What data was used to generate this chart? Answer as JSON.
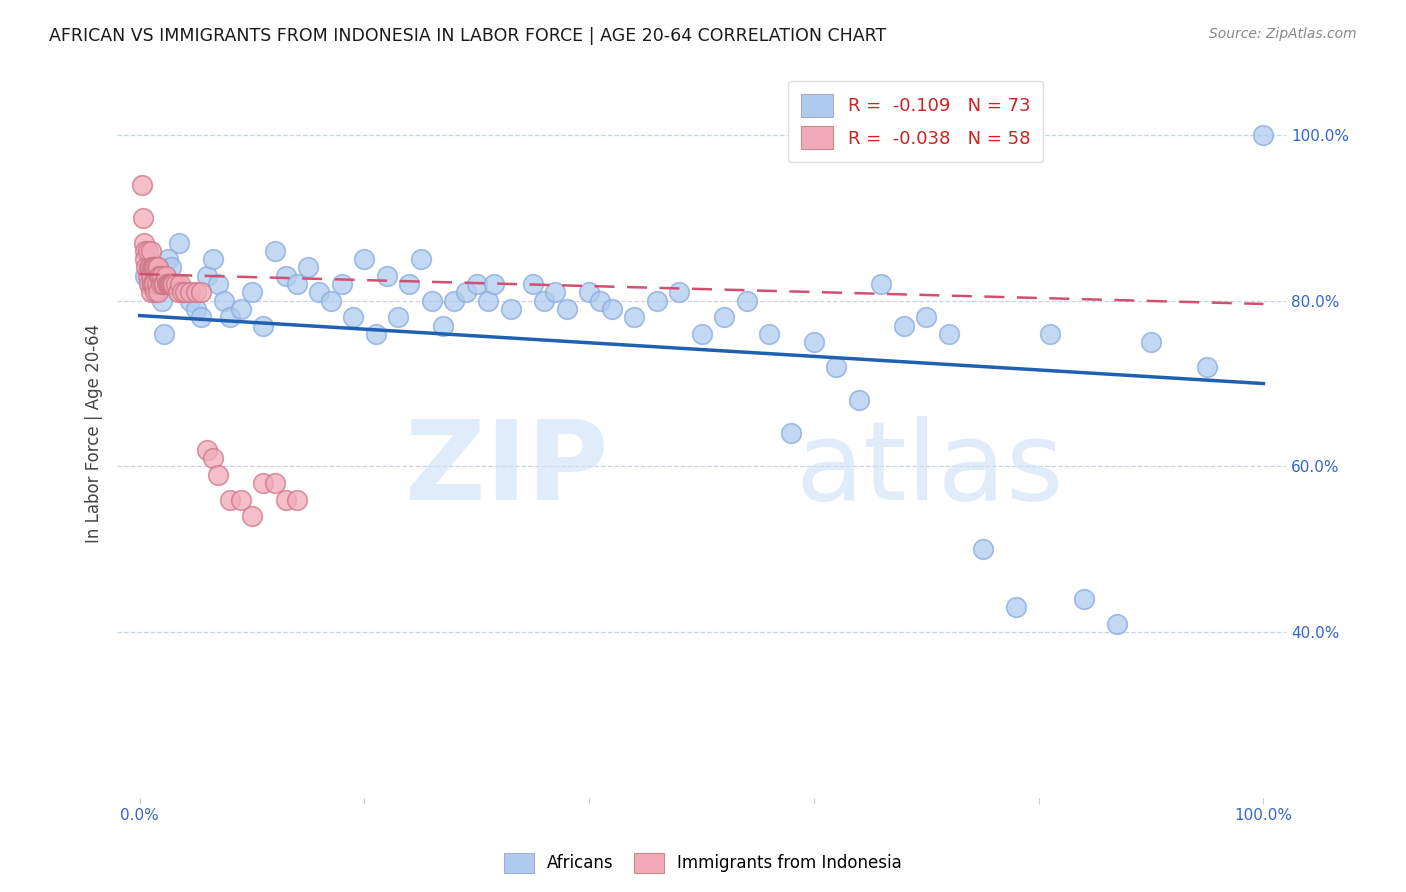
{
  "title": "AFRICAN VS IMMIGRANTS FROM INDONESIA IN LABOR FORCE | AGE 20-64 CORRELATION CHART",
  "source": "Source: ZipAtlas.com",
  "ylabel": "In Labor Force | Age 20-64",
  "xlim": [
    -0.02,
    1.02
  ],
  "ylim": [
    0.2,
    1.08
  ],
  "x_ticks": [
    0.0,
    0.2,
    0.4,
    0.6,
    0.8,
    1.0
  ],
  "x_tick_labels": [
    "0.0%",
    "",
    "",
    "",
    "",
    "100.0%"
  ],
  "y_ticks_right": [
    0.4,
    0.6,
    0.8,
    1.0
  ],
  "y_tick_labels_right": [
    "40.0%",
    "60.0%",
    "80.0%",
    "100.0%"
  ],
  "legend_blue_r": "-0.109",
  "legend_blue_n": "73",
  "legend_pink_r": "-0.038",
  "legend_pink_n": "58",
  "blue_color": "#aecbef",
  "pink_color": "#f2aab8",
  "blue_line_color": "#2060b0",
  "pink_line_color": "#d05070",
  "background_color": "#ffffff",
  "grid_color": "#c8d4e8",
  "blue_trend_x": [
    0.0,
    1.0
  ],
  "blue_trend_y": [
    0.782,
    0.7
  ],
  "pink_trend_x": [
    0.0,
    1.0
  ],
  "pink_trend_y": [
    0.832,
    0.796
  ],
  "blue_scatter_x": [
    0.005,
    0.01,
    0.015,
    0.02,
    0.022,
    0.025,
    0.028,
    0.03,
    0.035,
    0.04,
    0.045,
    0.05,
    0.055,
    0.06,
    0.065,
    0.07,
    0.075,
    0.08,
    0.09,
    0.1,
    0.11,
    0.12,
    0.13,
    0.14,
    0.15,
    0.16,
    0.17,
    0.18,
    0.19,
    0.2,
    0.21,
    0.22,
    0.23,
    0.24,
    0.25,
    0.26,
    0.27,
    0.28,
    0.29,
    0.3,
    0.31,
    0.315,
    0.33,
    0.35,
    0.36,
    0.37,
    0.38,
    0.4,
    0.41,
    0.42,
    0.44,
    0.46,
    0.48,
    0.5,
    0.52,
    0.54,
    0.56,
    0.58,
    0.6,
    0.62,
    0.64,
    0.66,
    0.68,
    0.7,
    0.72,
    0.75,
    0.78,
    0.81,
    0.84,
    0.87,
    0.9,
    0.95,
    1.0
  ],
  "blue_scatter_y": [
    0.83,
    0.82,
    0.81,
    0.8,
    0.76,
    0.85,
    0.84,
    0.82,
    0.87,
    0.81,
    0.8,
    0.79,
    0.78,
    0.83,
    0.85,
    0.82,
    0.8,
    0.78,
    0.79,
    0.81,
    0.77,
    0.86,
    0.83,
    0.82,
    0.84,
    0.81,
    0.8,
    0.82,
    0.78,
    0.85,
    0.76,
    0.83,
    0.78,
    0.82,
    0.85,
    0.8,
    0.77,
    0.8,
    0.81,
    0.82,
    0.8,
    0.82,
    0.79,
    0.82,
    0.8,
    0.81,
    0.79,
    0.81,
    0.8,
    0.79,
    0.78,
    0.8,
    0.81,
    0.76,
    0.78,
    0.8,
    0.76,
    0.64,
    0.75,
    0.72,
    0.68,
    0.82,
    0.77,
    0.78,
    0.76,
    0.5,
    0.43,
    0.76,
    0.44,
    0.41,
    0.75,
    0.72,
    1.0
  ],
  "pink_scatter_x": [
    0.002,
    0.003,
    0.004,
    0.005,
    0.005,
    0.006,
    0.007,
    0.007,
    0.008,
    0.008,
    0.009,
    0.01,
    0.01,
    0.01,
    0.011,
    0.011,
    0.012,
    0.012,
    0.013,
    0.013,
    0.014,
    0.014,
    0.015,
    0.015,
    0.016,
    0.016,
    0.017,
    0.018,
    0.019,
    0.02,
    0.021,
    0.022,
    0.023,
    0.024,
    0.025,
    0.026,
    0.027,
    0.028,
    0.029,
    0.03,
    0.032,
    0.034,
    0.036,
    0.038,
    0.04,
    0.045,
    0.05,
    0.055,
    0.06,
    0.065,
    0.07,
    0.08,
    0.09,
    0.1,
    0.11,
    0.12,
    0.13,
    0.14
  ],
  "pink_scatter_y": [
    0.94,
    0.9,
    0.87,
    0.86,
    0.85,
    0.84,
    0.86,
    0.83,
    0.84,
    0.82,
    0.84,
    0.86,
    0.83,
    0.81,
    0.84,
    0.82,
    0.84,
    0.82,
    0.84,
    0.82,
    0.84,
    0.81,
    0.84,
    0.82,
    0.84,
    0.81,
    0.83,
    0.83,
    0.82,
    0.83,
    0.82,
    0.82,
    0.83,
    0.82,
    0.82,
    0.82,
    0.82,
    0.82,
    0.82,
    0.82,
    0.82,
    0.81,
    0.82,
    0.81,
    0.81,
    0.81,
    0.81,
    0.81,
    0.62,
    0.61,
    0.59,
    0.56,
    0.56,
    0.54,
    0.58,
    0.58,
    0.56,
    0.56
  ]
}
